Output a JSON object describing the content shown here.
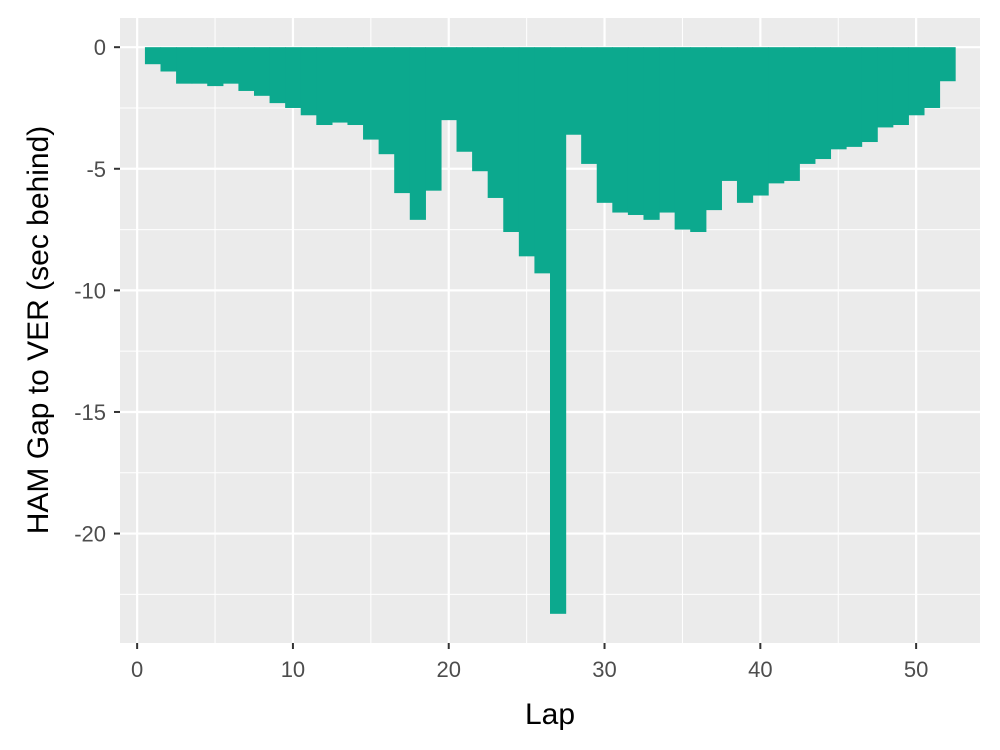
{
  "chart_data": {
    "type": "bar",
    "xlabel": "Lap",
    "ylabel": "HAM Gap to VER (sec behind)",
    "xlim": [
      -1.1,
      54.1
    ],
    "ylim": [
      -24.5,
      1.2
    ],
    "xticks": [
      0,
      10,
      20,
      30,
      40,
      50
    ],
    "xtick_labels": [
      "0",
      "10",
      "20",
      "30",
      "40",
      "50"
    ],
    "yticks": [
      0,
      -5,
      -10,
      -15,
      -20
    ],
    "ytick_labels": [
      "0",
      "-5",
      "-10",
      "-15",
      "-20"
    ],
    "grid": true,
    "panel_background": "#ebebeb",
    "grid_color": "#ffffff",
    "bar_color": "#0ca98e",
    "laps": [
      1,
      2,
      3,
      4,
      5,
      6,
      7,
      8,
      9,
      10,
      11,
      12,
      13,
      14,
      15,
      16,
      17,
      18,
      19,
      20,
      21,
      22,
      23,
      24,
      25,
      26,
      27,
      28,
      29,
      30,
      31,
      32,
      33,
      34,
      35,
      36,
      37,
      38,
      39,
      40,
      41,
      42,
      43,
      44,
      45,
      46,
      47,
      48,
      49,
      50,
      51,
      52
    ],
    "values": [
      -0.7,
      -1.0,
      -1.5,
      -1.5,
      -1.6,
      -1.5,
      -1.8,
      -2.0,
      -2.3,
      -2.5,
      -2.8,
      -3.2,
      -3.1,
      -3.2,
      -3.8,
      -4.4,
      -6.0,
      -7.1,
      -5.9,
      -3.0,
      -4.3,
      -5.1,
      -6.2,
      -7.6,
      -8.6,
      -9.3,
      -23.3,
      -3.6,
      -4.8,
      -6.4,
      -6.8,
      -6.9,
      -7.1,
      -6.8,
      -7.5,
      -7.6,
      -6.7,
      -5.5,
      -6.4,
      -6.1,
      -5.6,
      -5.5,
      -4.8,
      -4.6,
      -4.2,
      -4.1,
      -3.9,
      -3.3,
      -3.2,
      -2.8,
      -2.5,
      -1.4
    ]
  }
}
